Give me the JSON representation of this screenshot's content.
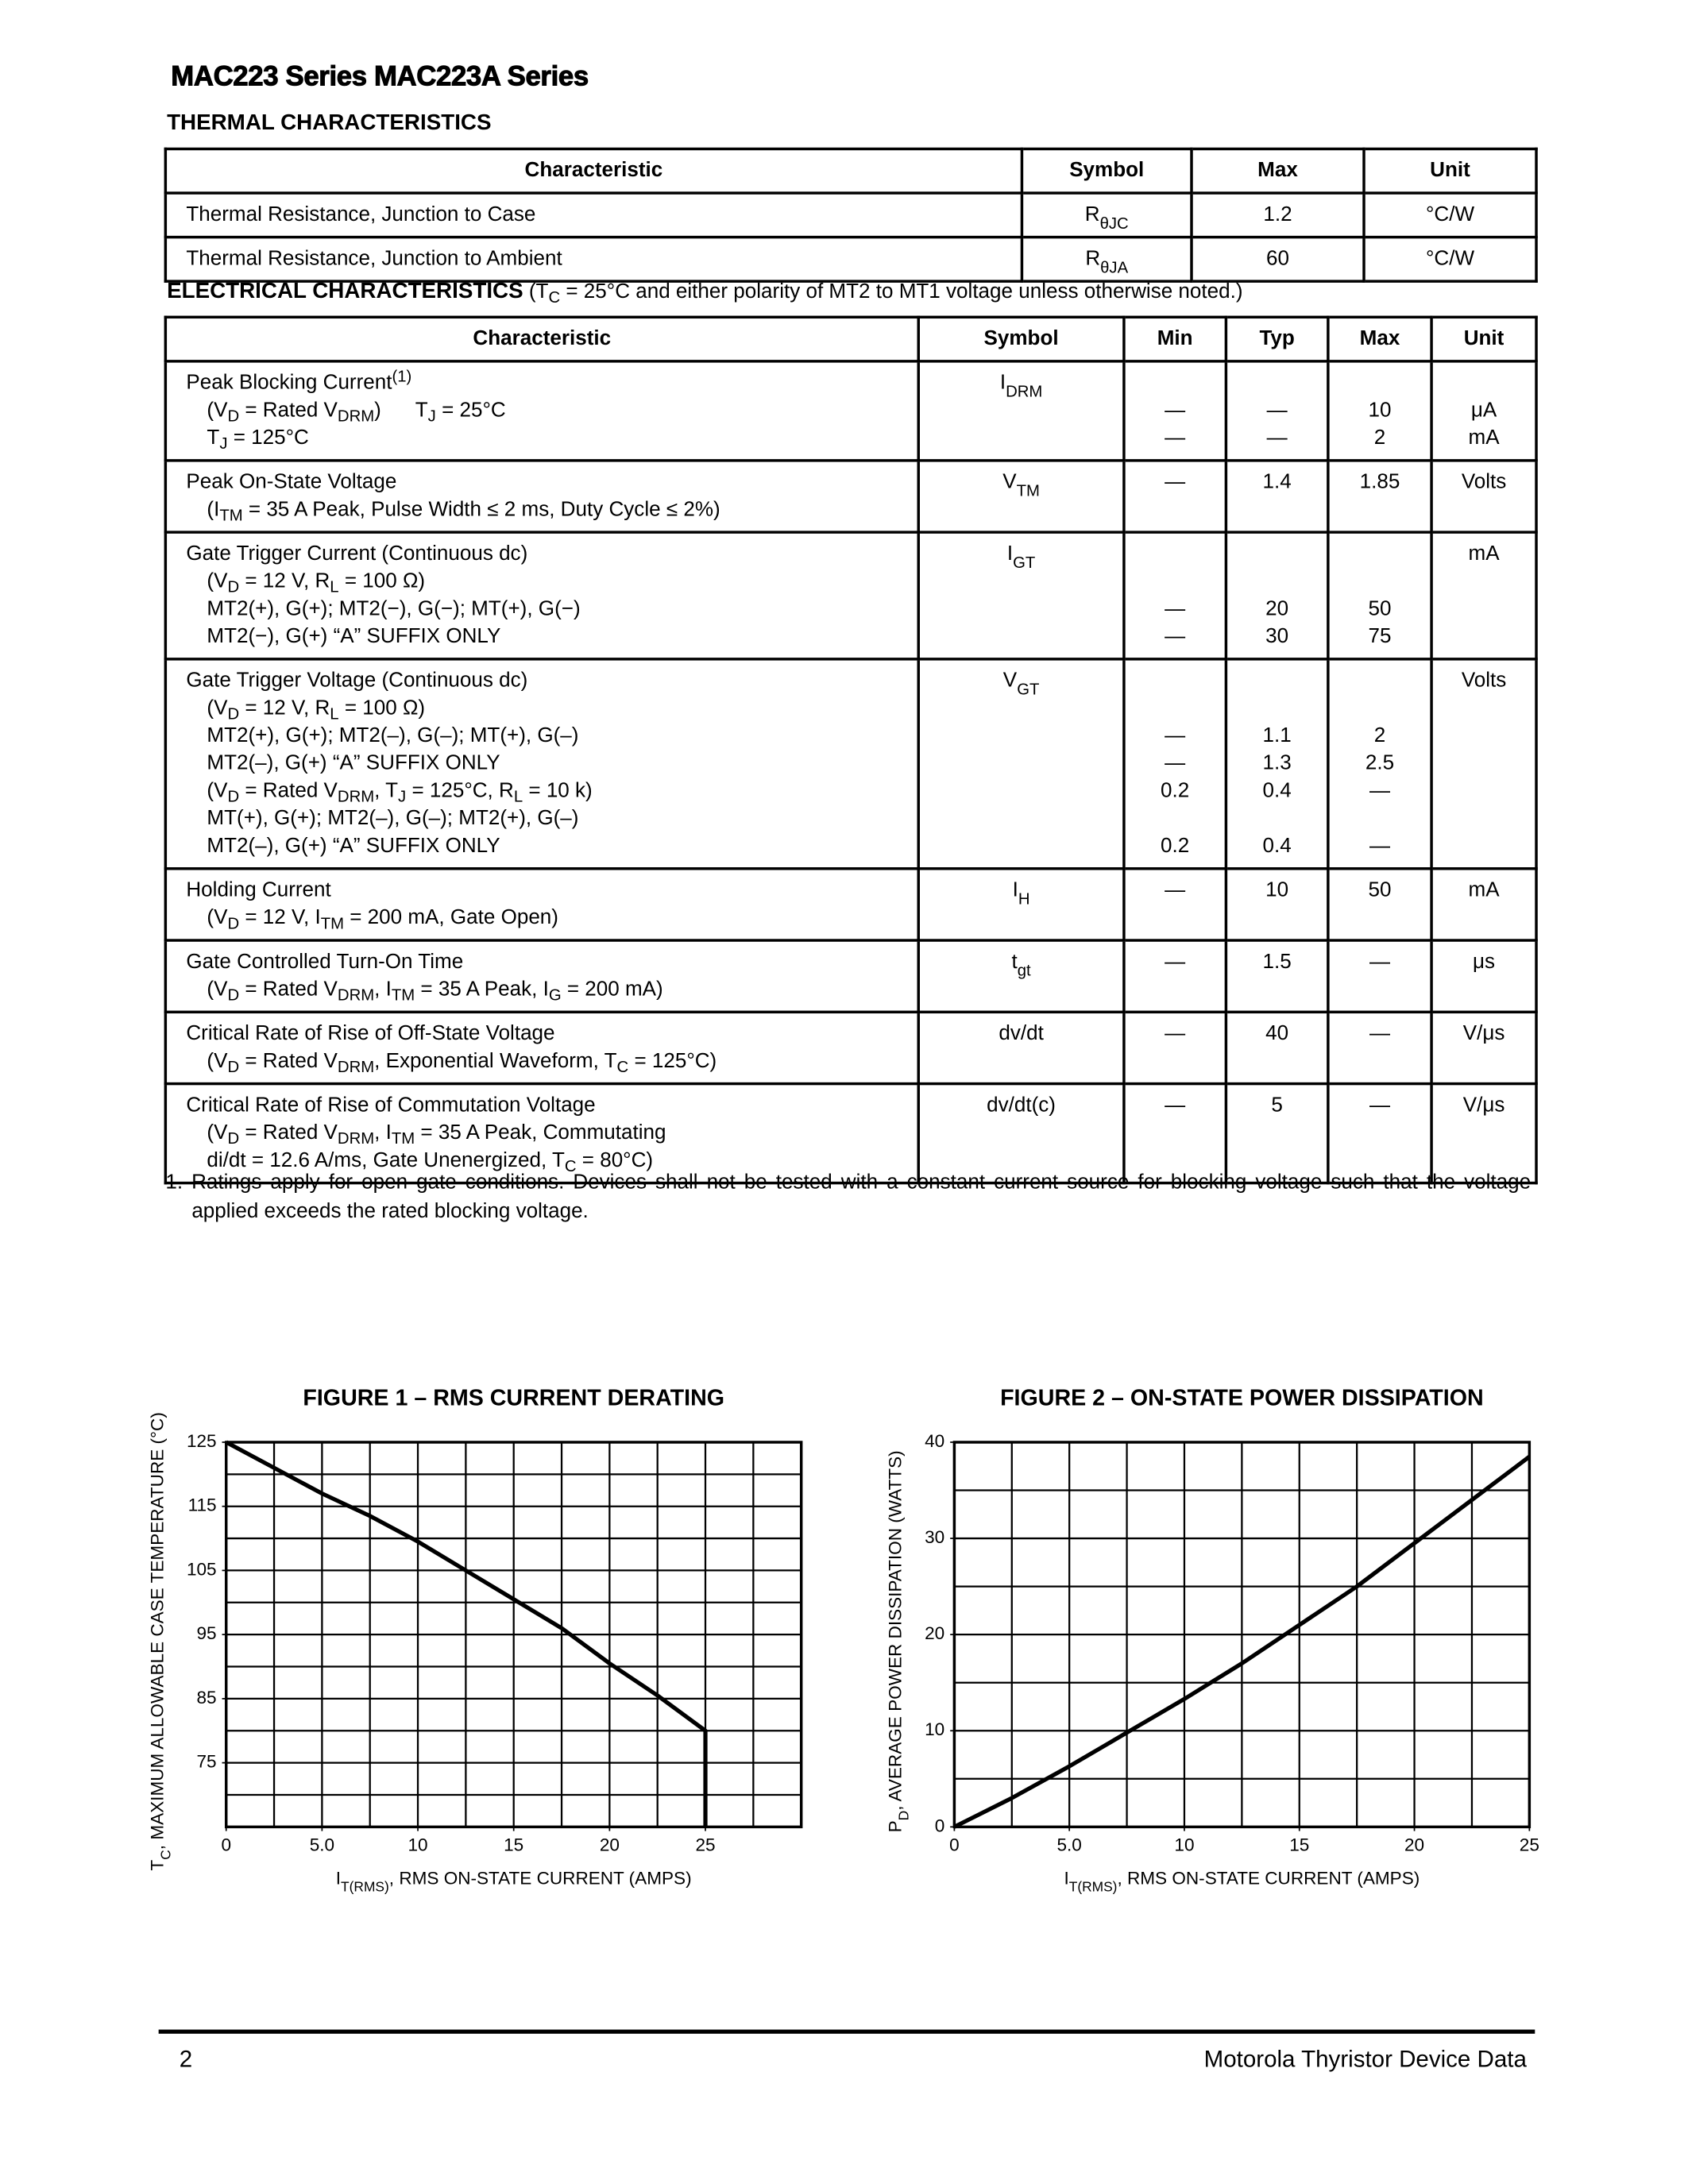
{
  "header": {
    "title": "MAC223 Series MAC223A Series"
  },
  "thermal": {
    "title": "THERMAL CHARACTERISTICS",
    "columns": [
      "Characteristic",
      "Symbol",
      "Max",
      "Unit"
    ],
    "rows": [
      [
        [
          "Thermal Resistance, Junction to Case"
        ],
        [
          [
            "R",
            {
              "sub": "θJC"
            }
          ]
        ],
        [
          "1.2"
        ],
        [
          "°C/W"
        ]
      ],
      [
        [
          "Thermal Resistance, Junction to Ambient"
        ],
        [
          [
            "R",
            {
              "sub": "θJA"
            }
          ]
        ],
        [
          "60"
        ],
        [
          "°C/W"
        ]
      ]
    ]
  },
  "electrical": {
    "title": "ELECTRICAL CHARACTERISTICS",
    "note": [
      " (T",
      {
        "sub": "C"
      },
      " = 25°C and either polarity of MT2 to MT1 voltage unless otherwise noted.)"
    ],
    "columns": [
      "Characteristic",
      "Symbol",
      "Min",
      "Typ",
      "Max",
      "Unit"
    ],
    "rows": [
      [
        [
          [
            "Peak Blocking Current",
            {
              "sup": "(1)"
            }
          ],
          [
            "(V",
            {
              "sub": "D"
            },
            " = Rated V",
            {
              "sub": "DRM"
            },
            ")      T",
            {
              "sub": "J"
            },
            " = 25°C"
          ],
          [
            "T",
            {
              "sub": "J"
            },
            " = 125°C"
          ]
        ],
        [
          [
            "I",
            {
              "sub": "DRM"
            }
          ]
        ],
        [
          null,
          "—",
          "—"
        ],
        [
          null,
          "—",
          "—"
        ],
        [
          null,
          "10",
          "2"
        ],
        [
          null,
          "μA",
          "mA"
        ]
      ],
      [
        [
          "Peak On-State Voltage",
          [
            "(I",
            {
              "sub": "TM"
            },
            " = 35 A Peak, Pulse Width ≤ 2 ms, Duty Cycle ≤ 2%)"
          ]
        ],
        [
          [
            "V",
            {
              "sub": "TM"
            }
          ]
        ],
        [
          "—"
        ],
        [
          "1.4"
        ],
        [
          "1.85"
        ],
        [
          "Volts"
        ]
      ],
      [
        [
          "Gate Trigger Current (Continuous dc)",
          [
            "(V",
            {
              "sub": "D"
            },
            " = 12 V, R",
            {
              "sub": "L"
            },
            " = 100 Ω)"
          ],
          "MT2(+), G(+); MT2(−), G(−); MT(+), G(−)",
          "MT2(−), G(+) “A” SUFFIX ONLY"
        ],
        [
          [
            "I",
            {
              "sub": "GT"
            }
          ]
        ],
        [
          null,
          null,
          "—",
          "—"
        ],
        [
          null,
          null,
          "20",
          "30"
        ],
        [
          null,
          null,
          "50",
          "75"
        ],
        [
          "mA"
        ]
      ],
      [
        [
          "Gate Trigger Voltage (Continuous dc)",
          [
            "(V",
            {
              "sub": "D"
            },
            " = 12 V, R",
            {
              "sub": "L"
            },
            " = 100 Ω)"
          ],
          "MT2(+), G(+); MT2(–), G(–); MT(+), G(–)",
          "MT2(–), G(+) “A” SUFFIX ONLY",
          [
            "(V",
            {
              "sub": "D"
            },
            " = Rated V",
            {
              "sub": "DRM"
            },
            ", T",
            {
              "sub": "J"
            },
            " = 125°C, R",
            {
              "sub": "L"
            },
            " = 10 k)"
          ],
          "MT(+), G(+); MT2(–), G(–); MT2(+), G(–)",
          "MT2(–), G(+) “A” SUFFIX ONLY"
        ],
        [
          [
            "V",
            {
              "sub": "GT"
            }
          ]
        ],
        [
          null,
          null,
          "—",
          "—",
          "0.2",
          null,
          "0.2"
        ],
        [
          null,
          null,
          "1.1",
          "1.3",
          "0.4",
          null,
          "0.4"
        ],
        [
          null,
          null,
          "2",
          "2.5",
          "—",
          null,
          "—"
        ],
        [
          "Volts"
        ]
      ],
      [
        [
          "Holding Current",
          [
            "(V",
            {
              "sub": "D"
            },
            " = 12 V, I",
            {
              "sub": "TM"
            },
            " = 200 mA, Gate Open)"
          ]
        ],
        [
          [
            "I",
            {
              "sub": "H"
            }
          ]
        ],
        [
          "—"
        ],
        [
          "10"
        ],
        [
          "50"
        ],
        [
          "mA"
        ]
      ],
      [
        [
          "Gate Controlled Turn-On Time",
          [
            "(V",
            {
              "sub": "D"
            },
            " = Rated V",
            {
              "sub": "DRM"
            },
            ", I",
            {
              "sub": "TM"
            },
            " = 35 A Peak, I",
            {
              "sub": "G"
            },
            " = 200 mA)"
          ]
        ],
        [
          [
            "t",
            {
              "sub": "gt"
            }
          ]
        ],
        [
          "—"
        ],
        [
          "1.5"
        ],
        [
          "—"
        ],
        [
          "μs"
        ]
      ],
      [
        [
          "Critical Rate of Rise of Off-State Voltage",
          [
            "(V",
            {
              "sub": "D"
            },
            " = Rated V",
            {
              "sub": "DRM"
            },
            ", Exponential Waveform, T",
            {
              "sub": "C"
            },
            " = 125°C)"
          ]
        ],
        [
          "dv/dt"
        ],
        [
          "—"
        ],
        [
          "40"
        ],
        [
          "—"
        ],
        [
          "V/μs"
        ]
      ],
      [
        [
          "Critical Rate of Rise of Commutation Voltage",
          [
            "(V",
            {
              "sub": "D"
            },
            " = Rated V",
            {
              "sub": "DRM"
            },
            ", I",
            {
              "sub": "TM"
            },
            " = 35 A Peak, Commutating"
          ],
          [
            "di/dt = 12.6 A/ms, Gate Unenergized, T",
            {
              "sub": "C"
            },
            " = 80°C)"
          ]
        ],
        [
          "dv/dt(c)"
        ],
        [
          "—"
        ],
        [
          "5"
        ],
        [
          "—"
        ],
        [
          "V/μs"
        ]
      ]
    ]
  },
  "footnote": {
    "number": "1.",
    "text": "Ratings apply for open gate conditions. Devices shall not be tested with a constant current source for blocking voltage such that the voltage applied exceeds the rated blocking voltage."
  },
  "chart_data": [
    {
      "type": "line",
      "title": "FIGURE 1 – RMS CURRENT DERATING",
      "x_label": [
        "I",
        {
          "sub": "T(RMS)"
        },
        ", RMS ON-STATE CURRENT (AMPS)"
      ],
      "y_label": [
        "T",
        {
          "sub": "C"
        },
        ", MAXIMUM ALLOWABLE CASE TEMPERATURE (°C)"
      ],
      "x": [
        0,
        2.5,
        5,
        7.5,
        10,
        12.5,
        15,
        17.5,
        20,
        22.5,
        25,
        25
      ],
      "values": [
        125,
        121,
        117,
        113.5,
        109.5,
        105,
        100.5,
        96,
        90.5,
        85.5,
        80,
        65
      ],
      "color": "#000000",
      "xlim": [
        0,
        30
      ],
      "ylim": [
        65,
        125
      ],
      "xticks": [
        0,
        {
          "value": 5,
          "label": "5.0"
        },
        10,
        15,
        20,
        25
      ],
      "yticks": [
        75,
        85,
        95,
        105,
        115,
        125
      ],
      "grid": true,
      "grid_x_step": 2.5,
      "grid_y_step": 5
    },
    {
      "type": "line",
      "title": "FIGURE 2 – ON-STATE POWER DISSIPATION",
      "x_label": [
        "I",
        {
          "sub": "T(RMS)"
        },
        ", RMS ON-STATE CURRENT (AMPS)"
      ],
      "y_label": [
        "P",
        {
          "sub": "D"
        },
        ", AVERAGE POWER DISSIPATION (WATTS)"
      ],
      "x": [
        0,
        2.5,
        5,
        7.5,
        10,
        12.5,
        15,
        17.5,
        20,
        22.5,
        25
      ],
      "values": [
        0,
        3,
        6.3,
        9.8,
        13.3,
        17,
        21,
        25,
        29.5,
        34,
        38.5
      ],
      "color": "#000000",
      "xlim": [
        0,
        25
      ],
      "ylim": [
        0,
        40
      ],
      "xticks": [
        0,
        {
          "value": 5,
          "label": "5.0"
        },
        10,
        15,
        20,
        25
      ],
      "yticks": [
        0,
        10,
        20,
        30,
        40
      ],
      "grid": true,
      "grid_x_step": 2.5,
      "grid_y_step": 5
    }
  ],
  "footer": {
    "page": "2",
    "text": "Motorola Thyristor Device Data"
  }
}
